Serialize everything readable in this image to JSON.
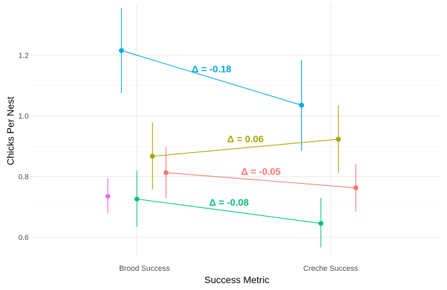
{
  "chart_data": {
    "type": "scatter",
    "xlabel": "Success Metric",
    "ylabel": "Chicks Per Nest",
    "categories": [
      "Brood Success",
      "Creche Success"
    ],
    "ylim": [
      0.535,
      1.37
    ],
    "y_ticks": [
      0.6,
      0.8,
      1.0,
      1.2
    ],
    "y_tick_labels": [
      "0.6",
      "0.8",
      "1.0",
      "1.2"
    ],
    "grid": true,
    "series": [
      {
        "color": "#00A9E0",
        "points": [
          {
            "category": "Brood Success",
            "dodge": -0.08,
            "y": 1.215,
            "ymin": 1.075,
            "ymax": 1.355
          },
          {
            "category": "Creche Success",
            "dodge": -0.15,
            "y": 1.035,
            "ymin": 0.885,
            "ymax": 1.185
          }
        ],
        "delta_label": "Δ =  -0.18"
      },
      {
        "color": "#A3A500",
        "points": [
          {
            "category": "Brood Success",
            "dodge": 0.08,
            "y": 0.867,
            "ymin": 0.758,
            "ymax": 0.978
          },
          {
            "category": "Creche Success",
            "dodge": 0.04,
            "y": 0.923,
            "ymin": 0.812,
            "ymax": 1.035
          }
        ],
        "delta_label": "Δ =  0.06"
      },
      {
        "color": "#F8766D",
        "points": [
          {
            "category": "Brood Success",
            "dodge": 0.15,
            "y": 0.813,
            "ymin": 0.728,
            "ymax": 0.898
          },
          {
            "category": "Creche Success",
            "dodge": 0.13,
            "y": 0.763,
            "ymin": 0.685,
            "ymax": 0.842
          }
        ],
        "delta_label": "Δ =  -0.05"
      },
      {
        "color": "#00BF7D",
        "points": [
          {
            "category": "Brood Success",
            "dodge": 0.0,
            "y": 0.726,
            "ymin": 0.635,
            "ymax": 0.82
          },
          {
            "category": "Creche Success",
            "dodge": -0.05,
            "y": 0.646,
            "ymin": 0.567,
            "ymax": 0.73
          }
        ],
        "delta_label": "Δ =  -0.08"
      },
      {
        "color": "#E76BF3",
        "points": [
          {
            "category": "Brood Success",
            "dodge": -0.15,
            "y": 0.735,
            "ymin": 0.68,
            "ymax": 0.795
          }
        ],
        "delta_label": ""
      }
    ]
  }
}
